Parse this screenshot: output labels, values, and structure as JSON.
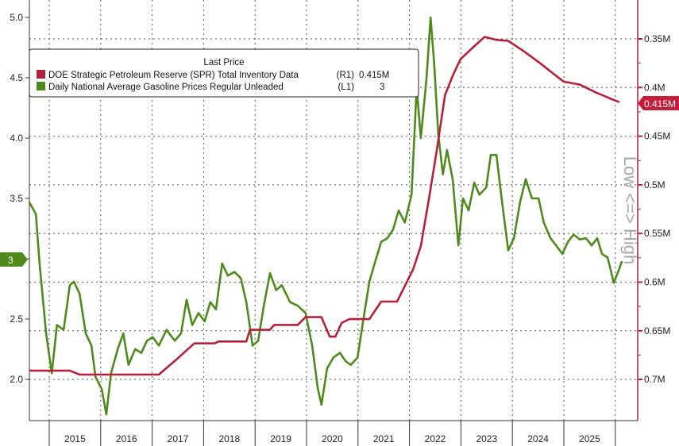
{
  "chart_data": {
    "type": "line",
    "title": "",
    "legend": {
      "header": "Last Price",
      "placement": "top-left",
      "entries": [
        {
          "label": "DOE Strategic Petroleum Reserve (SPR) Total Inventory Data",
          "axis": "(R1)",
          "last": "0.415M",
          "color": "#b5203a"
        },
        {
          "label": "Daily National Average Gasoline Prices Regular Unleaded",
          "axis": "(L1)",
          "last": "3",
          "color": "#4f8a1c"
        }
      ]
    },
    "x_ticks": [
      "2015",
      "2016",
      "2017",
      "2018",
      "2019",
      "2020",
      "2021",
      "2022",
      "2023",
      "2024",
      "2025"
    ],
    "left_axis": {
      "ticks": [
        "5.0",
        "4.5",
        "4.0",
        "3.5",
        "3.0",
        "2.5",
        "2.0"
      ],
      "values": [
        5.0,
        4.5,
        4.0,
        3.5,
        3.0,
        2.5,
        2.0
      ],
      "last_badge": "3"
    },
    "right_axis": {
      "ticks": [
        "0.35M",
        "0.4M",
        "0.45M",
        "0.5M",
        "0.55M",
        "0.6M",
        "0.65M",
        "0.7M"
      ],
      "values": [
        0.35,
        0.4,
        0.45,
        0.5,
        0.55,
        0.6,
        0.65,
        0.7
      ],
      "inverted": true,
      "label": "Low <=> High",
      "last_badge": "0.415M"
    },
    "series": [
      {
        "name": "Daily National Average Gasoline Prices Regular Unleaded",
        "axis": "left",
        "color": "#4f8a1c",
        "x": [
          2014.61,
          2014.74,
          2014.81,
          2014.94,
          2015.05,
          2015.15,
          2015.28,
          2015.4,
          2015.48,
          2015.59,
          2015.71,
          2015.82,
          2015.9,
          2016.02,
          2016.11,
          2016.2,
          2016.33,
          2016.44,
          2016.54,
          2016.67,
          2016.79,
          2016.9,
          2017.01,
          2017.13,
          2017.28,
          2017.44,
          2017.56,
          2017.67,
          2017.78,
          2017.9,
          2018.02,
          2018.13,
          2018.24,
          2018.36,
          2018.47,
          2018.6,
          2018.72,
          2018.83,
          2018.95,
          2019.06,
          2019.17,
          2019.29,
          2019.41,
          2019.52,
          2019.68,
          2019.83,
          2019.98,
          2020.11,
          2020.22,
          2020.29,
          2020.4,
          2020.52,
          2020.65,
          2020.76,
          2020.86,
          2020.99,
          2021.11,
          2021.22,
          2021.33,
          2021.45,
          2021.57,
          2021.68,
          2021.79,
          2021.91,
          2022.04,
          2022.14,
          2022.22,
          2022.33,
          2022.41,
          2022.48,
          2022.56,
          2022.65,
          2022.73,
          2022.84,
          2022.95,
          2023.04,
          2023.15,
          2023.26,
          2023.36,
          2023.49,
          2023.58,
          2023.69,
          2023.8,
          2023.92,
          2024.03,
          2024.15,
          2024.26,
          2024.38,
          2024.51,
          2024.61,
          2024.74,
          2024.85,
          2024.97,
          2025.08,
          2025.19,
          2025.31,
          2025.43,
          2025.54,
          2025.65,
          2025.74,
          2025.85,
          2025.97,
          2026.08,
          2026.13
        ],
        "values": [
          3.47,
          3.37,
          2.97,
          2.38,
          2.05,
          2.45,
          2.41,
          2.78,
          2.81,
          2.71,
          2.38,
          2.28,
          2.02,
          1.92,
          1.71,
          2.05,
          2.25,
          2.38,
          2.12,
          2.25,
          2.22,
          2.32,
          2.35,
          2.28,
          2.41,
          2.32,
          2.38,
          2.66,
          2.45,
          2.55,
          2.48,
          2.64,
          2.58,
          2.96,
          2.86,
          2.89,
          2.84,
          2.64,
          2.28,
          2.32,
          2.61,
          2.88,
          2.74,
          2.78,
          2.64,
          2.61,
          2.55,
          2.28,
          1.92,
          1.79,
          2.09,
          2.18,
          2.22,
          2.15,
          2.12,
          2.18,
          2.51,
          2.81,
          2.97,
          3.14,
          3.17,
          3.24,
          3.4,
          3.3,
          3.53,
          4.42,
          4.0,
          4.49,
          5.0,
          4.62,
          4.03,
          3.7,
          3.9,
          3.66,
          3.11,
          3.5,
          3.4,
          3.63,
          3.53,
          3.59,
          3.86,
          3.86,
          3.47,
          3.07,
          3.17,
          3.47,
          3.66,
          3.5,
          3.5,
          3.3,
          3.17,
          3.11,
          3.04,
          3.14,
          3.2,
          3.16,
          3.17,
          3.11,
          3.17,
          3.04,
          3.01,
          2.8,
          2.92,
          2.98
        ]
      },
      {
        "name": "DOE Strategic Petroleum Reserve (SPR) Total Inventory Data",
        "axis": "right",
        "color": "#b5203a",
        "x": [
          2014.61,
          2015.4,
          2015.59,
          2017.13,
          2017.44,
          2017.82,
          2018.21,
          2018.29,
          2018.83,
          2018.9,
          2019.29,
          2019.37,
          2019.83,
          2019.98,
          2020.29,
          2020.45,
          2020.56,
          2020.68,
          2020.83,
          2021.22,
          2021.45,
          2021.76,
          2022.07,
          2022.22,
          2022.38,
          2022.53,
          2022.69,
          2022.84,
          2022.99,
          2023.23,
          2023.46,
          2023.69,
          2023.92,
          2024.23,
          2024.54,
          2024.85,
          2025.0,
          2025.31,
          2025.62,
          2025.93,
          2026.08
        ],
        "values": [
          0.691,
          0.691,
          0.695,
          0.695,
          0.681,
          0.663,
          0.663,
          0.661,
          0.661,
          0.649,
          0.649,
          0.644,
          0.644,
          0.636,
          0.636,
          0.656,
          0.656,
          0.642,
          0.638,
          0.638,
          0.62,
          0.62,
          0.587,
          0.563,
          0.514,
          0.465,
          0.408,
          0.388,
          0.371,
          0.359,
          0.348,
          0.351,
          0.352,
          0.363,
          0.375,
          0.388,
          0.394,
          0.397,
          0.405,
          0.412,
          0.415
        ]
      }
    ]
  }
}
